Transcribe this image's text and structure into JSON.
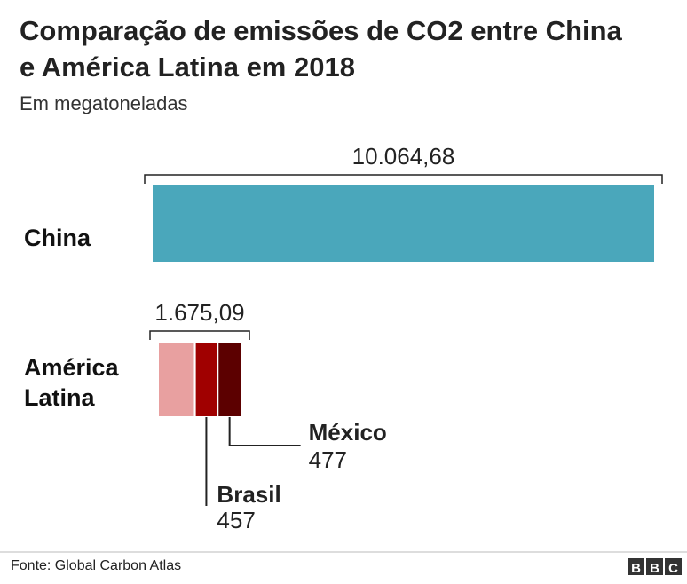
{
  "chart_data": {
    "type": "bar",
    "title": "Comparação de emissões de CO2 entre China e América Latina em 2018",
    "subtitle": "Em megatoneladas",
    "source": "Fonte: Global Carbon Atlas",
    "logo": [
      "B",
      "B",
      "C"
    ],
    "categories": [
      "China",
      "América Latina"
    ],
    "totals": [
      10064.68,
      1675.09
    ],
    "total_labels": [
      "10.064,68",
      "1.675,09"
    ],
    "series": [
      {
        "color": "#4aa7bb",
        "values": [
          10064.68,
          null
        ]
      },
      {
        "color": "#e8a0a0",
        "values": [
          null,
          741.09
        ]
      },
      {
        "name": "Brasil",
        "color": "#a00000",
        "values": [
          null,
          457
        ]
      },
      {
        "name": "México",
        "color": "#5c0000",
        "values": [
          null,
          477
        ]
      }
    ]
  }
}
